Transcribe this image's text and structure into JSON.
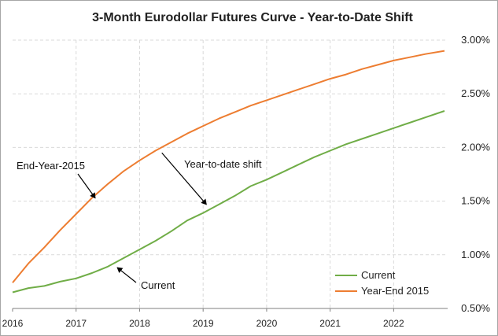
{
  "chart_data": {
    "type": "line",
    "title": "3-Month Eurodollar Futures Curve - Year-to-Date Shift",
    "xlabel": "",
    "ylabel": "",
    "x_ticks": [
      "2016",
      "2017",
      "2018",
      "2019",
      "2020",
      "2021",
      "2022"
    ],
    "xlim": [
      2016,
      2022.85
    ],
    "y_ticks": [
      "0.50%",
      "1.00%",
      "1.50%",
      "2.00%",
      "2.50%",
      "3.00%"
    ],
    "ylim": [
      0.5,
      3.0
    ],
    "grid": true,
    "legend_position": "bottom-right",
    "series": [
      {
        "name": "Current",
        "color": "#70ad47",
        "x": [
          2016.0,
          2016.25,
          2016.5,
          2016.75,
          2017.0,
          2017.25,
          2017.5,
          2017.75,
          2018.0,
          2018.25,
          2018.5,
          2018.75,
          2019.0,
          2019.25,
          2019.5,
          2019.75,
          2020.0,
          2020.25,
          2020.5,
          2020.75,
          2021.0,
          2021.25,
          2021.5,
          2021.75,
          2022.0,
          2022.25,
          2022.5,
          2022.8
        ],
        "y": [
          0.65,
          0.69,
          0.71,
          0.75,
          0.78,
          0.83,
          0.89,
          0.97,
          1.05,
          1.13,
          1.22,
          1.32,
          1.39,
          1.47,
          1.55,
          1.64,
          1.7,
          1.77,
          1.84,
          1.91,
          1.97,
          2.03,
          2.08,
          2.13,
          2.18,
          2.23,
          2.28,
          2.34
        ]
      },
      {
        "name": "Year-End 2015",
        "color": "#ed7d31",
        "x": [
          2016.0,
          2016.25,
          2016.5,
          2016.75,
          2017.0,
          2017.25,
          2017.5,
          2017.75,
          2018.0,
          2018.25,
          2018.5,
          2018.75,
          2019.0,
          2019.25,
          2019.5,
          2019.75,
          2020.0,
          2020.25,
          2020.5,
          2020.75,
          2021.0,
          2021.25,
          2021.5,
          2021.75,
          2022.0,
          2022.25,
          2022.5,
          2022.8
        ],
        "y": [
          0.74,
          0.92,
          1.07,
          1.23,
          1.38,
          1.53,
          1.66,
          1.78,
          1.88,
          1.97,
          2.05,
          2.13,
          2.2,
          2.27,
          2.33,
          2.39,
          2.44,
          2.49,
          2.54,
          2.59,
          2.64,
          2.68,
          2.73,
          2.77,
          2.81,
          2.84,
          2.87,
          2.9
        ]
      }
    ],
    "annotations": [
      {
        "text": "End-Year-2015",
        "arrow_to": {
          "x": 2017.3,
          "y": 1.53
        }
      },
      {
        "text": "Year-to-date shift",
        "arrow_from": {
          "x": 2018.35,
          "y": 1.95
        },
        "arrow_to": {
          "x": 2019.05,
          "y": 1.47
        }
      },
      {
        "text": "Current",
        "arrow_to": {
          "x": 2017.65,
          "y": 0.88
        }
      }
    ]
  }
}
